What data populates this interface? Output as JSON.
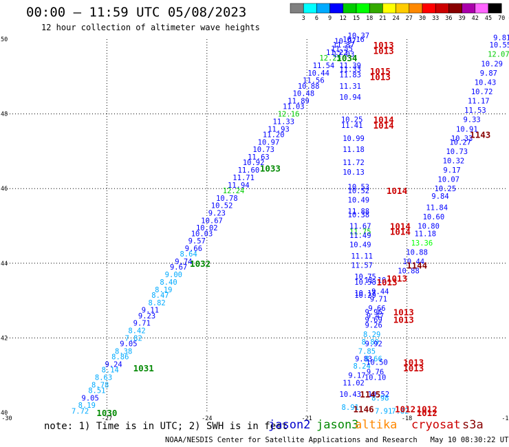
{
  "title": "00:00 – 11:59 UTC 05/08/2023",
  "subtitle": "12 hour collection of altimeter wave heights",
  "colorbar": {
    "labels": [
      "3",
      "6",
      "9",
      "12",
      "15",
      "18",
      "21",
      "24",
      "27",
      "30",
      "33",
      "36",
      "39",
      "42",
      "45",
      "70",
      "(ft)"
    ],
    "colors": [
      "#808080",
      "#00ffff",
      "#00aaff",
      "#0000ff",
      "#00cc00",
      "#00ff00",
      "#33aa00",
      "#ffff00",
      "#ffcc00",
      "#ff8800",
      "#ff0000",
      "#cc0000",
      "#880000",
      "#aa00aa",
      "#ff66ff",
      "#000000"
    ]
  },
  "footer": {
    "note": "note: 1) Time is in UTC; 2) SWH is in feet",
    "satellites": [
      {
        "name": "jason2",
        "color": "#0000cc"
      },
      {
        "name": "jason3",
        "color": "#008800"
      },
      {
        "name": "altika",
        "color": "#ff8800"
      },
      {
        "name": "cryosat",
        "color": "#cc0000"
      },
      {
        "name": "s3a",
        "color": "#880000"
      }
    ],
    "credit": "NOAA/NESDIS Center for Satellite Applications and Research   May 10 08:30:22 UTC 2023"
  },
  "chart_data": {
    "type": "scatter",
    "title": "00:00 – 11:59 UTC 05/08/2023",
    "subtitle": "12 hour collection of altimeter wave heights",
    "xlim": [
      -30,
      -15
    ],
    "ylim": [
      40,
      50
    ],
    "xticks": [
      "-30",
      "-27",
      "-24",
      "-21",
      "-18",
      "-15"
    ],
    "yticks": [
      "40",
      "42",
      "44",
      "46",
      "48",
      "50"
    ],
    "grid": true,
    "units": "ft",
    "swh_points": [
      {
        "lon": -27.8,
        "lat": 40.05,
        "v": "7.72",
        "c": "#00aaff"
      },
      {
        "lon": -27.6,
        "lat": 40.2,
        "v": "8.19",
        "c": "#00aaff"
      },
      {
        "lon": -27.5,
        "lat": 40.4,
        "v": "9.05",
        "c": "#0000ff"
      },
      {
        "lon": -27.3,
        "lat": 40.6,
        "v": "8.51",
        "c": "#00aaff"
      },
      {
        "lon": -27.2,
        "lat": 40.75,
        "v": "8.78",
        "c": "#00aaff"
      },
      {
        "lon": -27.1,
        "lat": 40.95,
        "v": "8.63",
        "c": "#00aaff"
      },
      {
        "lon": -26.9,
        "lat": 41.15,
        "v": "8.14",
        "c": "#00aaff"
      },
      {
        "lon": -26.8,
        "lat": 41.3,
        "v": "9.24",
        "c": "#0000ff"
      },
      {
        "lon": -26.6,
        "lat": 41.5,
        "v": "8.86",
        "c": "#00aaff"
      },
      {
        "lon": -26.5,
        "lat": 41.65,
        "v": "8.38",
        "c": "#00aaff"
      },
      {
        "lon": -26.35,
        "lat": 41.85,
        "v": "9.05",
        "c": "#0000ff"
      },
      {
        "lon": -26.2,
        "lat": 42.0,
        "v": "7.82",
        "c": "#00aaff"
      },
      {
        "lon": -26.1,
        "lat": 42.2,
        "v": "8.42",
        "c": "#00aaff"
      },
      {
        "lon": -25.95,
        "lat": 42.4,
        "v": "9.71",
        "c": "#0000ff"
      },
      {
        "lon": -25.8,
        "lat": 42.6,
        "v": "9.23",
        "c": "#0000ff"
      },
      {
        "lon": -25.7,
        "lat": 42.75,
        "v": "9.11",
        "c": "#0000ff"
      },
      {
        "lon": -25.5,
        "lat": 42.95,
        "v": "8.82",
        "c": "#00aaff"
      },
      {
        "lon": -25.4,
        "lat": 43.15,
        "v": "8.47",
        "c": "#00aaff"
      },
      {
        "lon": -25.3,
        "lat": 43.3,
        "v": "8.19",
        "c": "#00aaff"
      },
      {
        "lon": -25.15,
        "lat": 43.5,
        "v": "8.40",
        "c": "#00aaff"
      },
      {
        "lon": -25.0,
        "lat": 43.7,
        "v": "9.00",
        "c": "#00aaff"
      },
      {
        "lon": -24.85,
        "lat": 43.9,
        "v": "9.67",
        "c": "#0000ff"
      },
      {
        "lon": -24.7,
        "lat": 44.05,
        "v": "9.74",
        "c": "#0000ff"
      },
      {
        "lon": -24.55,
        "lat": 44.25,
        "v": "8.64",
        "c": "#00aaff"
      },
      {
        "lon": -24.4,
        "lat": 44.4,
        "v": "9.66",
        "c": "#0000ff"
      },
      {
        "lon": -24.3,
        "lat": 44.6,
        "v": "9.57",
        "c": "#0000ff"
      },
      {
        "lon": -24.15,
        "lat": 44.8,
        "v": "10.03",
        "c": "#0000ff"
      },
      {
        "lon": -24.0,
        "lat": 44.95,
        "v": "10.02",
        "c": "#0000ff"
      },
      {
        "lon": -23.85,
        "lat": 45.15,
        "v": "10.67",
        "c": "#0000ff"
      },
      {
        "lon": -23.7,
        "lat": 45.35,
        "v": "9.23",
        "c": "#0000ff"
      },
      {
        "lon": -23.55,
        "lat": 45.55,
        "v": "10.52",
        "c": "#0000ff"
      },
      {
        "lon": -23.4,
        "lat": 45.75,
        "v": "10.78",
        "c": "#0000ff"
      },
      {
        "lon": -23.2,
        "lat": 45.95,
        "v": "12.24",
        "c": "#00cc00"
      },
      {
        "lon": -23.05,
        "lat": 46.1,
        "v": "11.94",
        "c": "#0000ff"
      },
      {
        "lon": -22.9,
        "lat": 46.3,
        "v": "11.71",
        "c": "#0000ff"
      },
      {
        "lon": -22.75,
        "lat": 46.5,
        "v": "11.60",
        "c": "#0000ff"
      },
      {
        "lon": -22.6,
        "lat": 46.7,
        "v": "10.92",
        "c": "#0000ff"
      },
      {
        "lon": -22.45,
        "lat": 46.85,
        "v": "11.63",
        "c": "#0000ff"
      },
      {
        "lon": -22.3,
        "lat": 47.05,
        "v": "10.73",
        "c": "#0000ff"
      },
      {
        "lon": -22.15,
        "lat": 47.25,
        "v": "10.97",
        "c": "#0000ff"
      },
      {
        "lon": -22.0,
        "lat": 47.45,
        "v": "11.20",
        "c": "#0000ff"
      },
      {
        "lon": -21.85,
        "lat": 47.6,
        "v": "11.93",
        "c": "#0000ff"
      },
      {
        "lon": -21.7,
        "lat": 47.8,
        "v": "11.33",
        "c": "#0000ff"
      },
      {
        "lon": -21.55,
        "lat": 48.0,
        "v": "12.16",
        "c": "#00cc00"
      },
      {
        "lon": -21.4,
        "lat": 48.2,
        "v": "11.03",
        "c": "#0000ff"
      },
      {
        "lon": -21.25,
        "lat": 48.35,
        "v": "11.89",
        "c": "#0000ff"
      },
      {
        "lon": -21.1,
        "lat": 48.55,
        "v": "10.48",
        "c": "#0000ff"
      },
      {
        "lon": -20.95,
        "lat": 48.75,
        "v": "10.88",
        "c": "#0000ff"
      },
      {
        "lon": -20.8,
        "lat": 48.9,
        "v": "11.56",
        "c": "#0000ff"
      },
      {
        "lon": -20.65,
        "lat": 49.1,
        "v": "10.44",
        "c": "#0000ff"
      },
      {
        "lon": -20.5,
        "lat": 49.3,
        "v": "11.54",
        "c": "#0000ff"
      },
      {
        "lon": -20.3,
        "lat": 49.5,
        "v": "12.25",
        "c": "#00cc00"
      },
      {
        "lon": -20.1,
        "lat": 49.65,
        "v": "11.22",
        "c": "#0000ff"
      },
      {
        "lon": -19.95,
        "lat": 49.75,
        "v": "11.55",
        "c": "#0000ff"
      },
      {
        "lon": -19.9,
        "lat": 49.85,
        "v": "11.87",
        "c": "#0000ff"
      },
      {
        "lon": -19.85,
        "lat": 49.95,
        "v": "10.97",
        "c": "#0000ff"
      },
      {
        "lon": -19.6,
        "lat": 50.0,
        "v": "10.16",
        "c": "#0000ff"
      },
      {
        "lon": -19.45,
        "lat": 50.1,
        "v": "10.37",
        "c": "#0000ff"
      },
      {
        "lon": -19.9,
        "lat": 49.6,
        "v": "12.03",
        "c": "#0000ff"
      },
      {
        "lon": -19.7,
        "lat": 49.3,
        "v": "11.39",
        "c": "#0000ff"
      },
      {
        "lon": -19.7,
        "lat": 49.2,
        "v": "11.33",
        "c": "#0000ff"
      },
      {
        "lon": -19.7,
        "lat": 49.05,
        "v": "11.83",
        "c": "#0000ff"
      },
      {
        "lon": -19.7,
        "lat": 48.75,
        "v": "11.31",
        "c": "#0000ff"
      },
      {
        "lon": -19.7,
        "lat": 48.45,
        "v": "10.94",
        "c": "#0000ff"
      },
      {
        "lon": -19.65,
        "lat": 47.85,
        "v": "10.25",
        "c": "#0000ff"
      },
      {
        "lon": -19.65,
        "lat": 47.7,
        "v": "11.41",
        "c": "#0000ff"
      },
      {
        "lon": -19.6,
        "lat": 47.35,
        "v": "10.99",
        "c": "#0000ff"
      },
      {
        "lon": -19.6,
        "lat": 47.05,
        "v": "11.18",
        "c": "#0000ff"
      },
      {
        "lon": -19.6,
        "lat": 46.7,
        "v": "11.72",
        "c": "#0000ff"
      },
      {
        "lon": -19.6,
        "lat": 46.45,
        "v": "10.13",
        "c": "#0000ff"
      },
      {
        "lon": -19.45,
        "lat": 46.05,
        "v": "10.53",
        "c": "#0000ff"
      },
      {
        "lon": -19.45,
        "lat": 45.95,
        "v": "10.52",
        "c": "#0000ff"
      },
      {
        "lon": -19.45,
        "lat": 45.7,
        "v": "10.49",
        "c": "#0000ff"
      },
      {
        "lon": -19.45,
        "lat": 45.4,
        "v": "11.88",
        "c": "#0000ff"
      },
      {
        "lon": -19.45,
        "lat": 45.3,
        "v": "10.38",
        "c": "#0000ff"
      },
      {
        "lon": -19.4,
        "lat": 45.0,
        "v": "11.67",
        "c": "#0000ff"
      },
      {
        "lon": -19.4,
        "lat": 44.85,
        "v": "11.75",
        "c": "#00cc00"
      },
      {
        "lon": -19.4,
        "lat": 44.75,
        "v": "11.49",
        "c": "#0000ff"
      },
      {
        "lon": -19.4,
        "lat": 44.5,
        "v": "10.49",
        "c": "#0000ff"
      },
      {
        "lon": -19.35,
        "lat": 44.2,
        "v": "11.11",
        "c": "#0000ff"
      },
      {
        "lon": -19.35,
        "lat": 43.95,
        "v": "11.57",
        "c": "#0000ff"
      },
      {
        "lon": -19.25,
        "lat": 43.65,
        "v": "10.75",
        "c": "#0000ff"
      },
      {
        "lon": -19.25,
        "lat": 43.5,
        "v": "10.58",
        "c": "#0000ff"
      },
      {
        "lon": -19.25,
        "lat": 43.2,
        "v": "10.17",
        "c": "#0000ff"
      },
      {
        "lon": -19.25,
        "lat": 43.15,
        "v": "10.29",
        "c": "#0000ff"
      },
      {
        "lon": -18.95,
        "lat": 43.55,
        "v": "11.10",
        "c": "#0000ff"
      },
      {
        "lon": -18.8,
        "lat": 43.25,
        "v": "9.44",
        "c": "#0000ff"
      },
      {
        "lon": -18.85,
        "lat": 43.05,
        "v": "9.71",
        "c": "#0000ff"
      },
      {
        "lon": -18.9,
        "lat": 42.8,
        "v": "9.66",
        "c": "#0000ff"
      },
      {
        "lon": -19.0,
        "lat": 42.7,
        "v": "9.96",
        "c": "#0000ff"
      },
      {
        "lon": -18.95,
        "lat": 42.6,
        "v": "9.47",
        "c": "#0000ff"
      },
      {
        "lon": -19.0,
        "lat": 42.5,
        "v": "9.69",
        "c": "#0000ff"
      },
      {
        "lon": -19.0,
        "lat": 42.35,
        "v": "9.26",
        "c": "#0000ff"
      },
      {
        "lon": -19.05,
        "lat": 42.1,
        "v": "8.29",
        "c": "#00aaff"
      },
      {
        "lon": -19.1,
        "lat": 41.9,
        "v": "8.89",
        "c": "#00aaff"
      },
      {
        "lon": -19.0,
        "lat": 41.85,
        "v": "9.92",
        "c": "#0000ff"
      },
      {
        "lon": -19.2,
        "lat": 41.65,
        "v": "7.85",
        "c": "#00aaff"
      },
      {
        "lon": -19.3,
        "lat": 41.45,
        "v": "9.83",
        "c": "#0000ff"
      },
      {
        "lon": -19.0,
        "lat": 41.45,
        "v": "8.66",
        "c": "#00aaff"
      },
      {
        "lon": -19.35,
        "lat": 41.25,
        "v": "8.24",
        "c": "#00aaff"
      },
      {
        "lon": -18.9,
        "lat": 41.35,
        "v": "10.50",
        "c": "#0000ff"
      },
      {
        "lon": -18.95,
        "lat": 41.1,
        "v": "9.76",
        "c": "#0000ff"
      },
      {
        "lon": -19.5,
        "lat": 41.0,
        "v": "9.17",
        "c": "#0000ff"
      },
      {
        "lon": -18.95,
        "lat": 40.95,
        "v": "10.10",
        "c": "#0000ff"
      },
      {
        "lon": -19.6,
        "lat": 40.8,
        "v": "11.02",
        "c": "#0000ff"
      },
      {
        "lon": -19.7,
        "lat": 40.5,
        "v": "10.43",
        "c": "#0000ff"
      },
      {
        "lon": -18.85,
        "lat": 40.5,
        "v": "10.52",
        "c": "#0000ff"
      },
      {
        "lon": -18.8,
        "lat": 40.4,
        "v": "8.98",
        "c": "#00aaff"
      },
      {
        "lon": -19.7,
        "lat": 40.15,
        "v": "8.91",
        "c": "#00aaff"
      },
      {
        "lon": -18.7,
        "lat": 40.05,
        "v": "7.91",
        "c": "#00aaff"
      },
      {
        "lon": -18.2,
        "lat": 40.05,
        "v": "7.82",
        "c": "#00aaff"
      },
      {
        "lon": -15.15,
        "lat": 50.05,
        "v": "9.81",
        "c": "#0000ff"
      },
      {
        "lon": -15.2,
        "lat": 49.85,
        "v": "10.55",
        "c": "#0000ff"
      },
      {
        "lon": -15.25,
        "lat": 49.6,
        "v": "12.07",
        "c": "#00cc00"
      },
      {
        "lon": -15.45,
        "lat": 49.35,
        "v": "10.29",
        "c": "#0000ff"
      },
      {
        "lon": -15.55,
        "lat": 49.1,
        "v": "9.87",
        "c": "#0000ff"
      },
      {
        "lon": -15.65,
        "lat": 48.85,
        "v": "10.43",
        "c": "#0000ff"
      },
      {
        "lon": -15.75,
        "lat": 48.6,
        "v": "10.72",
        "c": "#0000ff"
      },
      {
        "lon": -15.85,
        "lat": 48.35,
        "v": "11.17",
        "c": "#0000ff"
      },
      {
        "lon": -15.95,
        "lat": 48.1,
        "v": "11.53",
        "c": "#0000ff"
      },
      {
        "lon": -16.05,
        "lat": 47.85,
        "v": "9.33",
        "c": "#0000ff"
      },
      {
        "lon": -16.2,
        "lat": 47.6,
        "v": "10.91",
        "c": "#0000ff"
      },
      {
        "lon": -16.35,
        "lat": 47.35,
        "v": "10.33",
        "c": "#0000ff"
      },
      {
        "lon": -16.4,
        "lat": 47.25,
        "v": "10.27",
        "c": "#0000ff"
      },
      {
        "lon": -16.5,
        "lat": 47.0,
        "v": "10.73",
        "c": "#0000ff"
      },
      {
        "lon": -16.6,
        "lat": 46.75,
        "v": "10.32",
        "c": "#0000ff"
      },
      {
        "lon": -16.65,
        "lat": 46.5,
        "v": "9.17",
        "c": "#0000ff"
      },
      {
        "lon": -16.75,
        "lat": 46.25,
        "v": "10.07",
        "c": "#0000ff"
      },
      {
        "lon": -16.85,
        "lat": 46.0,
        "v": "10.25",
        "c": "#0000ff"
      },
      {
        "lon": -17.0,
        "lat": 45.8,
        "v": "9.84",
        "c": "#0000ff"
      },
      {
        "lon": -17.1,
        "lat": 45.5,
        "v": "11.84",
        "c": "#0000ff"
      },
      {
        "lon": -17.2,
        "lat": 45.25,
        "v": "10.60",
        "c": "#0000ff"
      },
      {
        "lon": -17.35,
        "lat": 45.0,
        "v": "10.80",
        "c": "#0000ff"
      },
      {
        "lon": -17.45,
        "lat": 44.8,
        "v": "11.18",
        "c": "#0000ff"
      },
      {
        "lon": -17.55,
        "lat": 44.55,
        "v": "13.36",
        "c": "#00ff00"
      },
      {
        "lon": -17.7,
        "lat": 44.3,
        "v": "10.88",
        "c": "#0000ff"
      },
      {
        "lon": -17.8,
        "lat": 44.05,
        "v": "10.44",
        "c": "#0000ff"
      },
      {
        "lon": -17.95,
        "lat": 43.8,
        "v": "10.88",
        "c": "#0000ff"
      }
    ],
    "pressure_labels": [
      {
        "lon": -27.0,
        "lat": 40.0,
        "v": "1030",
        "c": "#008800"
      },
      {
        "lon": -25.9,
        "lat": 41.2,
        "v": "1031",
        "c": "#008800"
      },
      {
        "lon": -24.2,
        "lat": 44.0,
        "v": "1032",
        "c": "#008800"
      },
      {
        "lon": -22.1,
        "lat": 46.55,
        "v": "1033",
        "c": "#008800"
      },
      {
        "lon": -19.8,
        "lat": 49.5,
        "v": "1034",
        "c": "#008800"
      },
      {
        "lon": -18.7,
        "lat": 49.85,
        "v": "1013",
        "c": "#cc0000"
      },
      {
        "lon": -18.7,
        "lat": 49.7,
        "v": "1013",
        "c": "#cc0000"
      },
      {
        "lon": -18.8,
        "lat": 49.15,
        "v": "1015",
        "c": "#cc0000"
      },
      {
        "lon": -18.8,
        "lat": 49.0,
        "v": "1013",
        "c": "#cc0000"
      },
      {
        "lon": -18.7,
        "lat": 47.85,
        "v": "1014",
        "c": "#cc0000"
      },
      {
        "lon": -18.7,
        "lat": 47.7,
        "v": "1014",
        "c": "#cc0000"
      },
      {
        "lon": -18.3,
        "lat": 45.95,
        "v": "1014",
        "c": "#cc0000"
      },
      {
        "lon": -18.2,
        "lat": 45.0,
        "v": "1014",
        "c": "#cc0000"
      },
      {
        "lon": -18.2,
        "lat": 44.85,
        "v": "1014",
        "c": "#cc0000"
      },
      {
        "lon": -18.3,
        "lat": 43.6,
        "v": "1013",
        "c": "#cc0000"
      },
      {
        "lon": -18.6,
        "lat": 43.5,
        "v": "1013",
        "c": "#cc0000"
      },
      {
        "lon": -18.1,
        "lat": 42.7,
        "v": "1013",
        "c": "#cc0000"
      },
      {
        "lon": -18.1,
        "lat": 42.5,
        "v": "1013",
        "c": "#cc0000"
      },
      {
        "lon": -17.7,
        "lat": 43.95,
        "v": "1144",
        "c": "#880000"
      },
      {
        "lon": -15.8,
        "lat": 47.45,
        "v": "1143",
        "c": "#880000"
      },
      {
        "lon": -17.8,
        "lat": 41.35,
        "v": "1013",
        "c": "#cc0000"
      },
      {
        "lon": -17.8,
        "lat": 41.2,
        "v": "1013",
        "c": "#cc0000"
      },
      {
        "lon": -19.1,
        "lat": 40.5,
        "v": "1145",
        "c": "#880000"
      },
      {
        "lon": -19.3,
        "lat": 40.1,
        "v": "1146",
        "c": "#880000"
      },
      {
        "lon": -18.05,
        "lat": 40.1,
        "v": "1012",
        "c": "#cc0000"
      },
      {
        "lon": -17.4,
        "lat": 40.1,
        "v": "1012",
        "c": "#cc0000"
      },
      {
        "lon": -17.4,
        "lat": 40.0,
        "v": "1012",
        "c": "#cc0000"
      }
    ]
  }
}
